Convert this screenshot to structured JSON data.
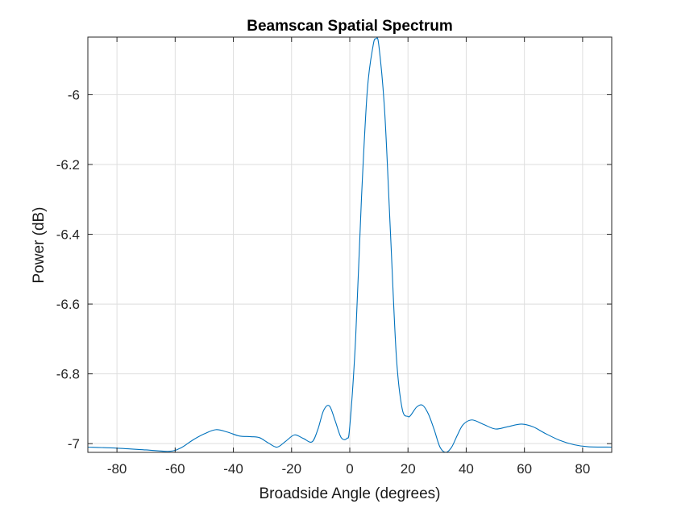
{
  "chart_data": {
    "type": "line",
    "title": "Beamscan Spatial Spectrum",
    "xlabel": "Broadside Angle (degrees)",
    "ylabel": "Power (dB)",
    "xlim": [
      -90,
      90
    ],
    "ylim": [
      -7.025,
      -5.835
    ],
    "grid": true,
    "xticks": [
      -80,
      -60,
      -40,
      -20,
      0,
      20,
      40,
      60,
      80
    ],
    "xtick_labels": [
      "-80",
      "-60",
      "-40",
      "-20",
      "0",
      "20",
      "40",
      "60",
      "80"
    ],
    "yticks": [
      -6,
      -6.2,
      -6.4,
      -6.6,
      -6.8,
      -7
    ],
    "ytick_labels": [
      "-6",
      "-6.2",
      "-6.4",
      "-6.6",
      "-6.8",
      "-7"
    ],
    "line_color": "#0072BD",
    "series": [
      {
        "x": [
          -90,
          -80,
          -70,
          -62,
          -58,
          -54,
          -50,
          -46,
          -42,
          -38,
          -34,
          -31,
          -28,
          -25,
          -22,
          -19,
          -16,
          -13,
          -11,
          -9,
          -7,
          -5,
          -3,
          -1,
          0,
          2,
          4,
          6,
          8,
          9,
          10,
          12,
          14,
          16,
          18,
          20,
          21,
          23,
          25,
          27,
          29,
          31,
          33,
          35,
          37,
          39,
          42,
          46,
          50,
          54,
          59,
          63,
          67,
          72,
          77,
          82,
          90
        ],
        "y": [
          -7.01,
          -7.013,
          -7.018,
          -7.022,
          -7.012,
          -6.99,
          -6.972,
          -6.96,
          -6.967,
          -6.978,
          -6.98,
          -6.983,
          -6.998,
          -7.01,
          -6.993,
          -6.975,
          -6.985,
          -6.995,
          -6.96,
          -6.905,
          -6.892,
          -6.935,
          -6.982,
          -6.985,
          -6.95,
          -6.7,
          -6.3,
          -5.99,
          -5.86,
          -5.84,
          -5.86,
          -6.05,
          -6.4,
          -6.75,
          -6.9,
          -6.922,
          -6.918,
          -6.895,
          -6.89,
          -6.915,
          -6.96,
          -7.01,
          -7.025,
          -7.01,
          -6.975,
          -6.945,
          -6.932,
          -6.945,
          -6.958,
          -6.952,
          -6.944,
          -6.952,
          -6.97,
          -6.99,
          -7.003,
          -7.009,
          -7.01
        ]
      }
    ]
  }
}
